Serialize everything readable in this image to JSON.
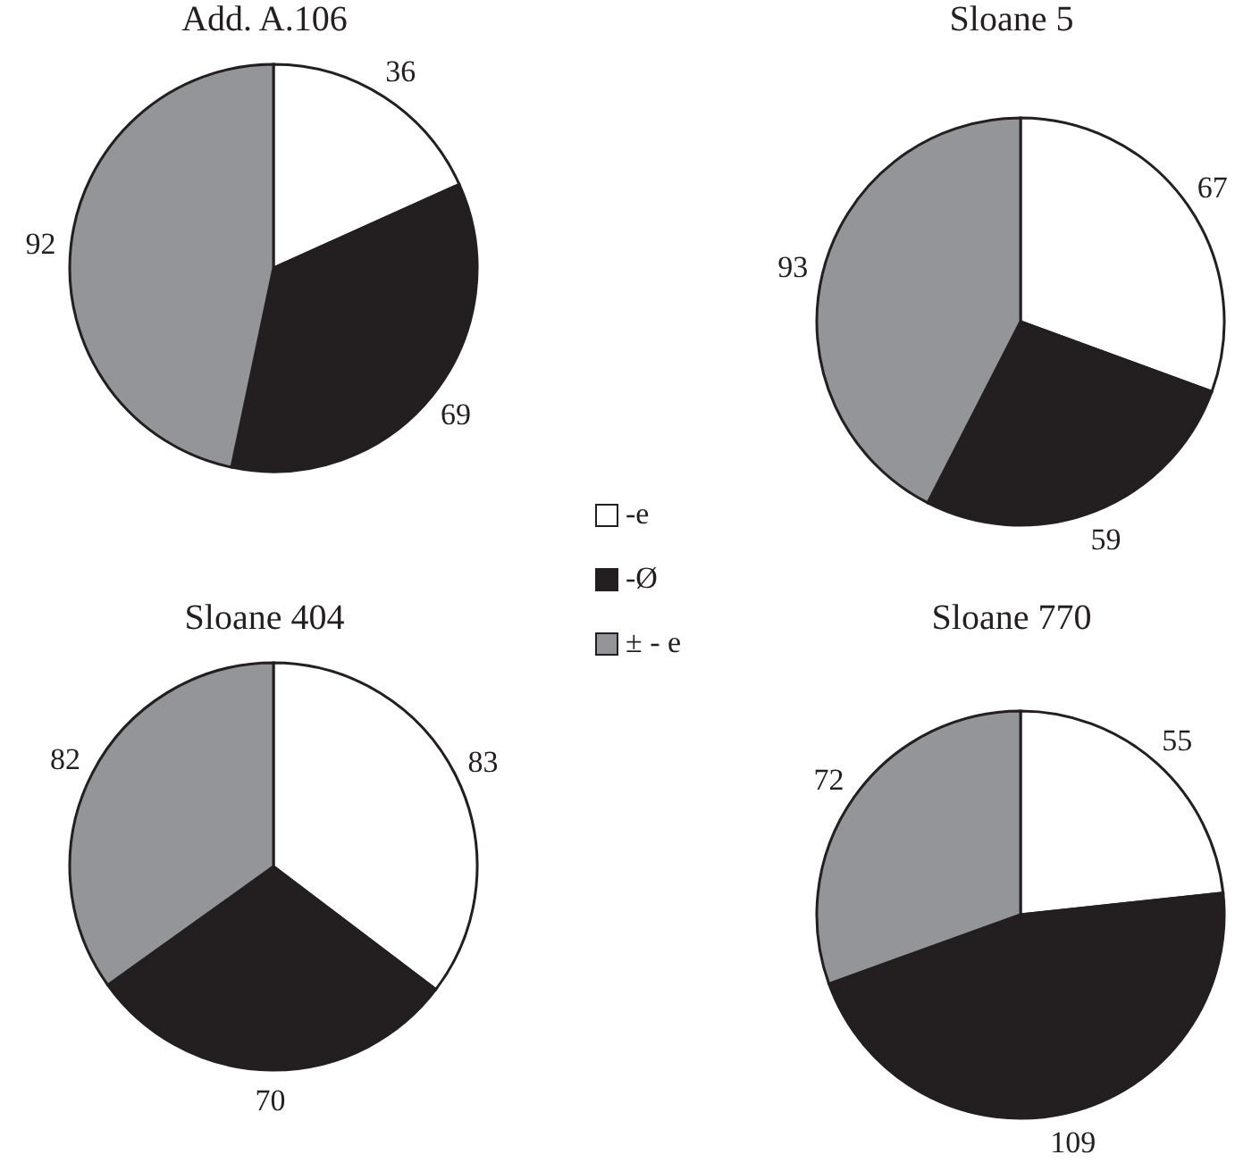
{
  "chart_data": [
    {
      "type": "pie",
      "title": "Add. A.106",
      "categories": [
        "-e",
        "-Ø",
        "± - e"
      ],
      "values": [
        36,
        69,
        92
      ],
      "colors": [
        "#ffffff",
        "#231f20",
        "#939598"
      ],
      "data_labels": true,
      "legend": "right"
    },
    {
      "type": "pie",
      "title": "Sloane 5",
      "values": [
        67,
        59,
        93
      ],
      "colors": [
        "#ffffff",
        "#231f20",
        "#939598"
      ],
      "data_labels": true
    },
    {
      "type": "pie",
      "title": "Sloane 404",
      "values": [
        83,
        70,
        82
      ],
      "colors": [
        "#ffffff",
        "#231f20",
        "#939598"
      ],
      "data_labels": true
    },
    {
      "type": "pie",
      "title": "Sloane 770",
      "values": [
        55,
        109,
        72
      ],
      "colors": [
        "#ffffff",
        "#231f20",
        "#939598"
      ],
      "data_labels": true
    }
  ]
}
